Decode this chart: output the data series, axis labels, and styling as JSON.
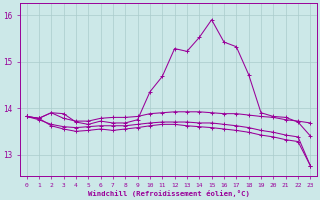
{
  "xlabel": "Windchill (Refroidissement éolien,°C)",
  "bg_color": "#cce8e8",
  "grid_color": "#aacccc",
  "line_color": "#990099",
  "xlim_left": -0.5,
  "xlim_right": 23.5,
  "ylim_bottom": 12.55,
  "ylim_top": 16.25,
  "yticks": [
    13,
    14,
    15,
    16
  ],
  "xticks": [
    0,
    1,
    2,
    3,
    4,
    5,
    6,
    7,
    8,
    9,
    10,
    11,
    12,
    13,
    14,
    15,
    16,
    17,
    18,
    19,
    20,
    21,
    22,
    23
  ],
  "series": [
    {
      "y": [
        13.82,
        13.78,
        13.9,
        13.88,
        13.7,
        13.65,
        13.72,
        13.68,
        13.68,
        13.75,
        14.35,
        14.68,
        15.28,
        15.22,
        15.52,
        15.9,
        15.42,
        15.32,
        14.72,
        13.9,
        13.82,
        13.8,
        13.7,
        13.4
      ],
      "marker": "+"
    },
    {
      "y": [
        13.82,
        13.78,
        13.9,
        13.78,
        13.72,
        13.72,
        13.78,
        13.8,
        13.8,
        13.82,
        13.88,
        13.9,
        13.92,
        13.92,
        13.92,
        13.9,
        13.88,
        13.88,
        13.85,
        13.82,
        13.8,
        13.75,
        13.72,
        13.68
      ],
      "marker": "+"
    },
    {
      "y": [
        13.82,
        13.75,
        13.65,
        13.6,
        13.58,
        13.6,
        13.62,
        13.62,
        13.62,
        13.65,
        13.68,
        13.7,
        13.7,
        13.7,
        13.68,
        13.68,
        13.65,
        13.62,
        13.58,
        13.52,
        13.48,
        13.42,
        13.38,
        12.76
      ],
      "marker": "+"
    },
    {
      "y": [
        13.82,
        13.78,
        13.62,
        13.55,
        13.5,
        13.52,
        13.55,
        13.52,
        13.55,
        13.58,
        13.62,
        13.65,
        13.65,
        13.62,
        13.6,
        13.58,
        13.55,
        13.52,
        13.48,
        13.42,
        13.38,
        13.32,
        13.28,
        12.76
      ],
      "marker": "+"
    }
  ]
}
